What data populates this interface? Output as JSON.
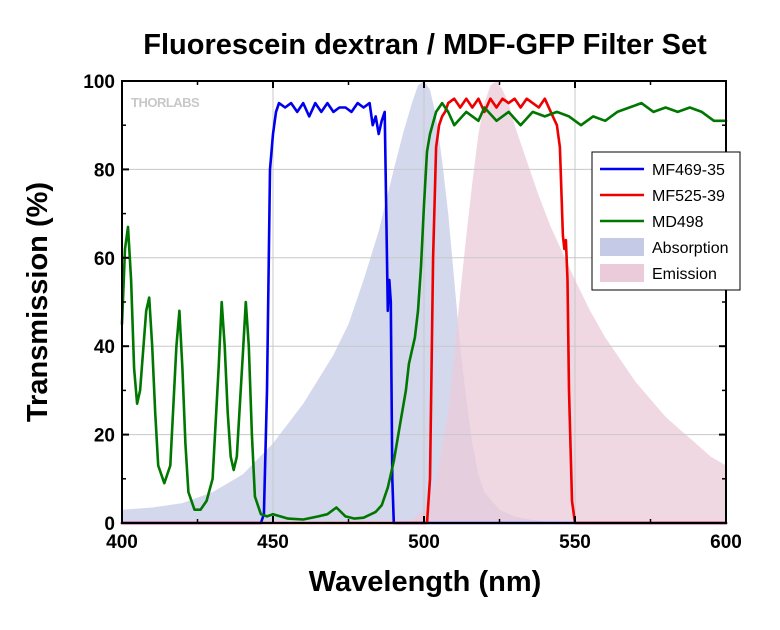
{
  "chart_data": {
    "type": "line",
    "title": "Fluorescein dextran / MDF-GFP Filter Set",
    "xlabel": "Wavelength (nm)",
    "ylabel": "Transmission (%)",
    "xlim": [
      400,
      600
    ],
    "ylim": [
      0,
      100
    ],
    "xticks": [
      400,
      450,
      500,
      550,
      600
    ],
    "yticks": [
      0,
      20,
      40,
      60,
      80,
      100
    ],
    "grid": true,
    "legend_position": "right",
    "watermark": "THORLABS",
    "series": [
      {
        "name": "MF469-35",
        "kind": "line",
        "color": "#0000ee",
        "x": [
          400,
          446,
          447,
          448,
          449,
          450,
          451,
          452,
          454,
          456,
          458,
          460,
          462,
          464,
          466,
          468,
          470,
          472,
          474,
          476,
          478,
          480,
          482,
          483,
          484,
          485,
          486,
          487,
          488,
          488.5,
          489,
          489.5,
          490,
          600
        ],
        "y": [
          0,
          0,
          2,
          30,
          80,
          88,
          93,
          95,
          94,
          95,
          93,
          95,
          92,
          95,
          93,
          95,
          93,
          94,
          94,
          93,
          95,
          94,
          95,
          90,
          92,
          88,
          91,
          93,
          48,
          55,
          50,
          10,
          0,
          0
        ]
      },
      {
        "name": "MF525-39",
        "kind": "line",
        "color": "#ee0000",
        "x": [
          400,
          501,
          502,
          503,
          504,
          505,
          506,
          507,
          508,
          510,
          512,
          514,
          516,
          518,
          520,
          522,
          524,
          526,
          528,
          530,
          532,
          534,
          536,
          538,
          540,
          542,
          544,
          545,
          546,
          546.5,
          547,
          547.5,
          548,
          549,
          550,
          600
        ],
        "y": [
          0,
          0,
          10,
          60,
          85,
          90,
          92,
          93,
          95,
          96,
          94,
          96,
          94,
          96,
          93,
          96,
          94,
          96,
          95,
          96,
          94,
          96,
          95,
          94,
          96,
          93,
          90,
          85,
          65,
          62,
          64,
          55,
          30,
          5,
          0,
          0
        ]
      },
      {
        "name": "MD498",
        "kind": "line",
        "color": "#007700",
        "x": [
          400,
          401,
          402,
          403,
          404,
          405,
          406,
          408,
          409,
          410,
          411,
          412,
          414,
          416,
          418,
          419,
          420,
          421,
          422,
          424,
          426,
          428,
          430,
          432,
          433,
          434,
          435,
          436,
          437,
          438,
          440,
          441,
          442,
          443,
          444,
          446,
          448,
          450,
          455,
          460,
          465,
          468,
          471,
          474,
          477,
          480,
          484,
          486,
          488,
          490,
          492,
          494,
          495,
          496,
          497,
          498,
          499,
          500,
          501,
          502,
          504,
          506,
          508,
          510,
          514,
          518,
          520,
          524,
          528,
          532,
          536,
          540,
          544,
          548,
          552,
          556,
          560,
          564,
          568,
          572,
          576,
          580,
          584,
          588,
          592,
          596,
          600
        ],
        "y": [
          45,
          62,
          67,
          55,
          35,
          27,
          30,
          48,
          51,
          40,
          25,
          13,
          9,
          13,
          40,
          48,
          35,
          18,
          7,
          3,
          3,
          5,
          10,
          35,
          50,
          40,
          25,
          15,
          12,
          15,
          38,
          50,
          40,
          20,
          6,
          2,
          1.5,
          2,
          1,
          0.8,
          1.5,
          2,
          3.5,
          1.5,
          1,
          1.2,
          2.5,
          4,
          8,
          14,
          22,
          30,
          36,
          39,
          42,
          48,
          58,
          72,
          84,
          88,
          93,
          95,
          93,
          90,
          93,
          91,
          94,
          91,
          93,
          90,
          93,
          92,
          93,
          92,
          90,
          92,
          91,
          93,
          94,
          95,
          93,
          94,
          93,
          94,
          93,
          91,
          91
        ]
      },
      {
        "name": "Absorption",
        "kind": "area",
        "color": "#c5cbe6",
        "x": [
          400,
          410,
          420,
          430,
          440,
          450,
          460,
          470,
          475,
          480,
          485,
          490,
          493,
          496,
          498,
          500,
          502,
          504,
          506,
          508,
          510,
          512,
          514,
          516,
          518,
          520,
          525,
          530,
          535,
          540,
          550,
          600
        ],
        "y": [
          3,
          3.5,
          4.5,
          7,
          11,
          18,
          27,
          38,
          45,
          55,
          66,
          80,
          88,
          95,
          99,
          100,
          98,
          92,
          82,
          70,
          55,
          40,
          28,
          18,
          11,
          7,
          3,
          1.5,
          0.8,
          0.4,
          0,
          0
        ]
      },
      {
        "name": "Emission",
        "kind": "area",
        "color": "#ebcbd9",
        "x": [
          400,
          495,
          500,
          504,
          508,
          510,
          512,
          514,
          516,
          518,
          520,
          522,
          524,
          526,
          528,
          530,
          534,
          538,
          542,
          546,
          550,
          555,
          560,
          565,
          570,
          575,
          580,
          585,
          590,
          595,
          600
        ],
        "y": [
          0,
          0,
          3,
          10,
          25,
          38,
          52,
          65,
          77,
          88,
          95,
          99,
          100,
          98,
          95,
          90,
          82,
          74,
          67,
          61,
          55,
          48,
          42,
          37,
          32,
          28,
          24,
          21,
          18,
          15,
          13
        ]
      }
    ]
  }
}
